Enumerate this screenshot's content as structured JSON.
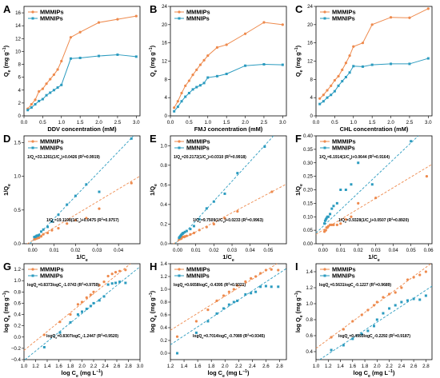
{
  "colors": {
    "mmips": "#ee8a4d",
    "mnips": "#2b9bbf"
  },
  "chart_data": [
    {
      "label": "A",
      "type": "line",
      "xlabel": "DDV concentration (mM)",
      "ylabel": "Q_e (mg g^-1)",
      "xlim": [
        0,
        3.1
      ],
      "ylim": [
        0,
        17
      ],
      "xticks": [
        0.0,
        0.5,
        1.0,
        1.5,
        2.0,
        2.5,
        3.0
      ],
      "yticks": [
        0,
        2,
        4,
        6,
        8,
        10,
        12,
        14,
        16
      ],
      "legend_pos": "top-left",
      "series": [
        {
          "name": "MMMIPs",
          "x": [
            0.1,
            0.2,
            0.3,
            0.4,
            0.5,
            0.6,
            0.7,
            0.8,
            0.9,
            1.0,
            1.25,
            1.5,
            2.0,
            2.5,
            3.0
          ],
          "y": [
            1.1,
            1.8,
            2.5,
            3.8,
            4.2,
            5.0,
            5.7,
            6.4,
            7.2,
            8.5,
            12.2,
            13.0,
            14.5,
            15.0,
            15.5
          ]
        },
        {
          "name": "MMNIPs",
          "x": [
            0.1,
            0.2,
            0.3,
            0.4,
            0.5,
            0.6,
            0.7,
            0.8,
            0.9,
            1.0,
            1.25,
            1.5,
            2.0,
            2.5,
            3.0
          ],
          "y": [
            0.9,
            1.3,
            1.8,
            2.3,
            2.6,
            3.2,
            3.6,
            4.0,
            4.4,
            4.8,
            8.9,
            9.0,
            9.3,
            9.5,
            9.2
          ]
        }
      ]
    },
    {
      "label": "B",
      "type": "line",
      "xlabel": "FMJ concentration (mM)",
      "ylabel": "Q_e (mg g^-1)",
      "xlim": [
        0,
        3.1
      ],
      "ylim": [
        0,
        24
      ],
      "xticks": [
        0.0,
        0.5,
        1.0,
        1.5,
        2.0,
        2.5,
        3.0
      ],
      "yticks": [
        0,
        4,
        8,
        12,
        16,
        20,
        24
      ],
      "legend_pos": "top-left",
      "series": [
        {
          "name": "MMMIPs",
          "x": [
            0.1,
            0.2,
            0.3,
            0.4,
            0.5,
            0.6,
            0.7,
            0.8,
            0.9,
            1.0,
            1.25,
            1.5,
            2.0,
            2.5,
            3.0
          ],
          "y": [
            1.8,
            3.2,
            5.0,
            6.6,
            7.7,
            9.0,
            10.1,
            11.2,
            12.2,
            13.2,
            15.0,
            15.6,
            18.0,
            20.5,
            20.0
          ]
        },
        {
          "name": "MMNIPs",
          "x": [
            0.1,
            0.2,
            0.3,
            0.4,
            0.5,
            0.6,
            0.7,
            0.8,
            0.9,
            1.0,
            1.25,
            1.5,
            2.0,
            2.5,
            3.0
          ],
          "y": [
            1.0,
            2.0,
            3.2,
            4.2,
            5.0,
            5.8,
            6.3,
            6.7,
            7.2,
            8.4,
            8.7,
            9.2,
            11.0,
            11.3,
            11.2
          ]
        }
      ]
    },
    {
      "label": "C",
      "type": "line",
      "xlabel": "CHL concentration (mM)",
      "ylabel": "Q_e (mg g^-1)",
      "xlim": [
        0,
        3.1
      ],
      "ylim": [
        0,
        24
      ],
      "xticks": [
        0.0,
        0.5,
        1.0,
        1.5,
        2.0,
        2.5,
        3.0
      ],
      "yticks": [
        0,
        4,
        8,
        12,
        16,
        20,
        24
      ],
      "legend_pos": "top-left",
      "series": [
        {
          "name": "MMMIPs",
          "x": [
            0.1,
            0.2,
            0.3,
            0.4,
            0.5,
            0.6,
            0.7,
            0.8,
            0.9,
            1.0,
            1.25,
            1.5,
            2.0,
            2.5,
            3.0
          ],
          "y": [
            3.8,
            4.6,
            5.6,
            6.6,
            7.8,
            8.7,
            10.1,
            11.6,
            13.2,
            15.2,
            16.0,
            20.0,
            21.6,
            21.5,
            23.5
          ]
        },
        {
          "name": "MMNIPs",
          "x": [
            0.1,
            0.2,
            0.3,
            0.4,
            0.5,
            0.6,
            0.7,
            0.8,
            0.9,
            1.0,
            1.25,
            1.5,
            2.0,
            2.5,
            3.0
          ],
          "y": [
            2.6,
            3.2,
            4.0,
            4.6,
            5.4,
            6.6,
            7.6,
            8.5,
            9.5,
            10.9,
            10.8,
            11.2,
            11.4,
            11.4,
            12.6
          ]
        }
      ]
    },
    {
      "label": "D",
      "type": "scatter",
      "xlabel": "1/C_e",
      "ylabel": "1/Q_e",
      "xlim": [
        -0.004,
        0.05
      ],
      "ylim": [
        0,
        1.6
      ],
      "xticks": [
        0.0,
        0.01,
        0.02,
        0.03,
        0.04
      ],
      "yticks": [
        0.0,
        0.5,
        1.0,
        1.5
      ],
      "legend_pos": "top-left",
      "fits": [
        {
          "series": "MMNIPs",
          "slope": 33.1261,
          "intercept": 0.0426
        },
        {
          "series": "MMMIPs",
          "slope": 19.1198,
          "intercept": 0.0475
        }
      ],
      "annotations": [
        "1/Q_e=33.1261(1/C_e)+0.0426 (R^2=0.9919)",
        "1/Q_e=19.1198(1/C_e)+0.0475 (R^2=0.9757)"
      ],
      "series": [
        {
          "name": "MMMIPs",
          "x": [
            0.0008,
            0.0012,
            0.0016,
            0.002,
            0.0025,
            0.003,
            0.004,
            0.005,
            0.007,
            0.009,
            0.012,
            0.016,
            0.02,
            0.025,
            0.031,
            0.046
          ],
          "y": [
            0.065,
            0.07,
            0.075,
            0.08,
            0.085,
            0.09,
            0.11,
            0.14,
            0.16,
            0.2,
            0.23,
            0.3,
            0.35,
            0.38,
            0.52,
            0.9
          ]
        },
        {
          "name": "MMNIPs",
          "x": [
            0.0008,
            0.0012,
            0.0016,
            0.002,
            0.0025,
            0.003,
            0.004,
            0.005,
            0.007,
            0.009,
            0.012,
            0.016,
            0.02,
            0.025,
            0.031,
            0.046
          ],
          "y": [
            0.1,
            0.1,
            0.11,
            0.12,
            0.12,
            0.13,
            0.18,
            0.21,
            0.25,
            0.33,
            0.43,
            0.58,
            0.71,
            0.88,
            0.77,
            1.56
          ]
        }
      ]
    },
    {
      "label": "E",
      "type": "scatter",
      "xlabel": "1/C_e",
      "ylabel": "1/Q_e",
      "xlim": [
        -0.004,
        0.06
      ],
      "ylim": [
        0,
        1.1
      ],
      "xticks": [
        0.0,
        0.01,
        0.02,
        0.03,
        0.04,
        0.05
      ],
      "yticks": [
        0.0,
        0.2,
        0.4,
        0.6,
        0.8,
        1.0
      ],
      "legend_pos": "top-left",
      "fits": [
        {
          "series": "MMNIPs",
          "slope": 20.2172,
          "intercept": 0.031
        },
        {
          "series": "MMMIPs",
          "slope": 9.7509,
          "intercept": 0.0233
        }
      ],
      "annotations": [
        "1/Q_e=20.2172(1/C_e)+0.0310 (R^2=0.9918)",
        "1/Q_e=9.7509(1/C_e)+0.0233 (R^2=0.9963)"
      ],
      "series": [
        {
          "name": "MMMIPs",
          "x": [
            0.0008,
            0.0012,
            0.0016,
            0.002,
            0.0025,
            0.003,
            0.004,
            0.005,
            0.007,
            0.009,
            0.012,
            0.016,
            0.02,
            0.026,
            0.033,
            0.052
          ],
          "y": [
            0.045,
            0.05,
            0.055,
            0.06,
            0.065,
            0.07,
            0.075,
            0.08,
            0.095,
            0.11,
            0.14,
            0.17,
            0.2,
            0.26,
            0.33,
            0.53
          ]
        },
        {
          "name": "MMNIPs",
          "x": [
            0.0008,
            0.0012,
            0.0016,
            0.002,
            0.0025,
            0.003,
            0.004,
            0.005,
            0.007,
            0.009,
            0.012,
            0.016,
            0.02,
            0.026,
            0.033,
            0.048
          ],
          "y": [
            0.06,
            0.07,
            0.08,
            0.09,
            0.1,
            0.11,
            0.12,
            0.13,
            0.15,
            0.18,
            0.25,
            0.36,
            0.43,
            0.51,
            0.72,
            0.99
          ]
        }
      ]
    },
    {
      "label": "F",
      "type": "scatter",
      "xlabel": "1/C_e",
      "ylabel": "1/Q_e",
      "xlim": [
        -0.004,
        0.062
      ],
      "ylim": [
        0,
        0.4
      ],
      "xticks": [
        0.0,
        0.01,
        0.02,
        0.03,
        0.04,
        0.05,
        0.06
      ],
      "yticks": [
        0.0,
        0.05,
        0.1,
        0.15,
        0.2,
        0.25,
        0.3,
        0.35,
        0.4
      ],
      "legend_pos": "top-left",
      "fits": [
        {
          "series": "MMNIPs",
          "slope": 6.1914,
          "intercept": 0.0644
        },
        {
          "series": "MMMIPs",
          "slope": 3.9328,
          "intercept": 0.0507
        }
      ],
      "annotations": [
        "1/Q_e=6.1914(1/C_e)+0.0644 (R^2=0.9164)",
        "1/Q_e=3.9328(1/C_e)+0.0507 (R^2=0.8920)"
      ],
      "series": [
        {
          "name": "MMMIPs",
          "x": [
            0.0008,
            0.0012,
            0.0016,
            0.002,
            0.0025,
            0.003,
            0.004,
            0.005,
            0.006,
            0.008,
            0.01,
            0.013,
            0.016,
            0.02,
            0.03,
            0.059
          ],
          "y": [
            0.045,
            0.05,
            0.05,
            0.06,
            0.06,
            0.065,
            0.07,
            0.07,
            0.07,
            0.07,
            0.075,
            0.09,
            0.1,
            0.15,
            0.17,
            0.25
          ]
        },
        {
          "name": "MMNIPs",
          "x": [
            0.0008,
            0.0012,
            0.0016,
            0.002,
            0.0025,
            0.003,
            0.004,
            0.005,
            0.006,
            0.008,
            0.01,
            0.013,
            0.016,
            0.02,
            0.028,
            0.05
          ],
          "y": [
            0.075,
            0.085,
            0.09,
            0.095,
            0.1,
            0.1,
            0.11,
            0.13,
            0.14,
            0.15,
            0.2,
            0.2,
            0.22,
            0.3,
            0.22,
            0.38
          ]
        }
      ]
    },
    {
      "label": "G",
      "type": "scatter",
      "xlabel": "log C_e (mg L^-1)",
      "ylabel": "log Q_e (mg g^-1)",
      "xlim": [
        1.0,
        3.0
      ],
      "ylim": [
        -0.4,
        1.3
      ],
      "xticks": [
        1.0,
        1.2,
        1.4,
        1.6,
        1.8,
        2.0,
        2.2,
        2.4,
        2.6,
        2.8,
        3.0
      ],
      "yticks": [
        -0.4,
        -0.2,
        0.0,
        0.2,
        0.4,
        0.6,
        0.8,
        1.0,
        1.2
      ],
      "legend_pos": "top-left",
      "fits": [
        {
          "series": "MMMIPs",
          "slope": 0.8373,
          "intercept": -1.0743
        },
        {
          "series": "MMNIPs",
          "slope": 0.8307,
          "intercept": -1.2447
        }
      ],
      "annotations": [
        "logQ_e=0.8373logC_e-1.0743 (R^2=0.9759)",
        "logQ_e=0.8307logC_e-1.2447 (R^2=0.9520)"
      ],
      "series": [
        {
          "name": "MMMIPs",
          "x": [
            1.35,
            1.62,
            1.8,
            1.93,
            2.0,
            2.08,
            2.15,
            2.2,
            2.3,
            2.38,
            2.45,
            2.52,
            2.58,
            2.65,
            2.75
          ],
          "y": [
            0.04,
            0.27,
            0.4,
            0.58,
            0.62,
            0.7,
            0.75,
            0.8,
            0.92,
            0.98,
            1.08,
            1.12,
            1.15,
            1.17,
            1.19
          ]
        },
        {
          "name": "MMNIPs",
          "x": [
            1.35,
            1.62,
            1.8,
            1.93,
            2.0,
            2.08,
            2.15,
            2.2,
            2.3,
            2.38,
            2.45,
            2.52,
            2.58,
            2.65,
            2.75
          ],
          "y": [
            -0.18,
            0.08,
            0.26,
            0.4,
            0.45,
            0.5,
            0.55,
            0.6,
            0.65,
            0.72,
            0.93,
            0.95,
            0.96,
            0.98,
            0.96
          ]
        }
      ]
    },
    {
      "label": "H",
      "type": "scatter",
      "xlabel": "log C_e (mg L^-1)",
      "ylabel": "log Q_e (mg g^-1)",
      "xlim": [
        1.2,
        2.9
      ],
      "ylim": [
        -0.1,
        1.4
      ],
      "xticks": [
        1.2,
        1.4,
        1.6,
        1.8,
        2.0,
        2.2,
        2.4,
        2.6,
        2.8
      ],
      "yticks": [
        0.0,
        0.2,
        0.4,
        0.6,
        0.8,
        1.0,
        1.2,
        1.4
      ],
      "legend_pos": "top-left",
      "fits": [
        {
          "series": "MMMIPs",
          "slope": 0.6658,
          "intercept": -0.4395
        },
        {
          "series": "MMNIPs",
          "slope": 0.7014,
          "intercept": -0.7089
        }
      ],
      "annotations": [
        "logQ_e=0.6658logC_e-0.4395 (R^2=0.9321)",
        "logQ_e=0.7014logC_e-0.7089 (R^2=0.9345)"
      ],
      "series": [
        {
          "name": "MMMIPs",
          "x": [
            1.3,
            1.58,
            1.75,
            1.88,
            1.98,
            2.06,
            2.13,
            2.18,
            2.3,
            2.38,
            2.45,
            2.52,
            2.6,
            2.68,
            2.78
          ],
          "y": [
            0.26,
            0.5,
            0.68,
            0.82,
            0.9,
            0.96,
            1.0,
            1.06,
            1.12,
            1.17,
            1.2,
            1.25,
            1.3,
            1.31,
            1.3
          ]
        },
        {
          "name": "MMNIPs",
          "x": [
            1.3,
            1.58,
            1.75,
            1.88,
            1.98,
            2.06,
            2.13,
            2.18,
            2.3,
            2.38,
            2.45,
            2.52,
            2.6,
            2.68,
            2.78
          ],
          "y": [
            0.0,
            0.32,
            0.5,
            0.62,
            0.7,
            0.76,
            0.8,
            0.82,
            0.92,
            0.94,
            0.96,
            1.04,
            1.05,
            1.04,
            1.04
          ]
        }
      ]
    },
    {
      "label": "I",
      "type": "scatter",
      "xlabel": "log C_e (mg L^-1)",
      "ylabel": "log Q_e (mg g^-1)",
      "xlim": [
        1.0,
        2.9
      ],
      "ylim": [
        0.3,
        1.5
      ],
      "xticks": [
        1.0,
        1.2,
        1.4,
        1.6,
        1.8,
        2.0,
        2.2,
        2.4,
        2.6,
        2.8
      ],
      "yticks": [
        0.4,
        0.6,
        0.8,
        1.0,
        1.2,
        1.4
      ],
      "legend_pos": "top-left",
      "fits": [
        {
          "series": "MMMIPs",
          "slope": 0.5631,
          "intercept": -0.1227
        },
        {
          "series": "MMNIPs",
          "slope": 0.4993,
          "intercept": -0.2292
        }
      ],
      "annotations": [
        "logQ_e=0.5631logC_e-0.1227 (R^2=0.9689)",
        "logQ_e=0.4993logC_e-0.2292 (R^2=0.9187)"
      ],
      "series": [
        {
          "name": "MMMIPs",
          "x": [
            1.25,
            1.45,
            1.6,
            1.75,
            1.85,
            1.95,
            2.0,
            2.1,
            2.2,
            2.3,
            2.4,
            2.5,
            2.6,
            2.7,
            2.8
          ],
          "y": [
            0.58,
            0.68,
            0.78,
            0.86,
            0.92,
            0.98,
            1.02,
            1.08,
            1.12,
            1.14,
            1.2,
            1.3,
            1.33,
            1.36,
            1.4
          ]
        },
        {
          "name": "MMNIPs",
          "x": [
            1.25,
            1.45,
            1.6,
            1.75,
            1.85,
            1.95,
            2.0,
            2.1,
            2.2,
            2.3,
            2.4,
            2.5,
            2.6,
            2.7,
            2.8
          ],
          "y": [
            0.42,
            0.48,
            0.56,
            0.62,
            0.66,
            0.72,
            0.8,
            0.88,
            0.94,
            0.98,
            1.02,
            1.04,
            1.06,
            1.05,
            1.1
          ]
        }
      ]
    }
  ]
}
